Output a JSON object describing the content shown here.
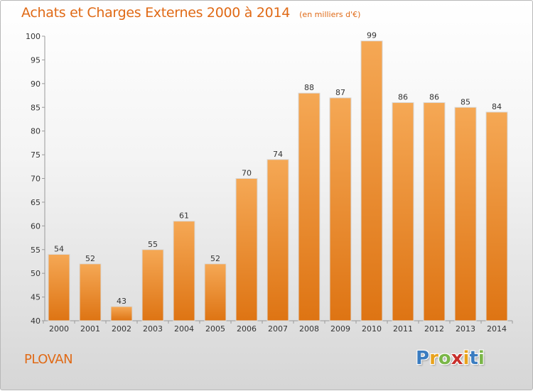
{
  "header": {
    "title": "Achats et Charges Externes 2000 à 2014",
    "unit": "(en milliers d'€)"
  },
  "footer": {
    "commune": "PLOVAN",
    "logo_letters": [
      "P",
      "r",
      "o",
      "x",
      "i",
      "t",
      "i"
    ],
    "logo_colors": [
      "#3a7cc0",
      "#e8a21c",
      "#7ab648",
      "#c8302c",
      "#e8a21c",
      "#3a7cc0",
      "#7ab648"
    ]
  },
  "colors": {
    "accent": "#e06a16",
    "bar_top": "#f5a855",
    "bar_bottom": "#de7413",
    "bar_edge": "#d9d9d9"
  },
  "chart_data": {
    "type": "bar",
    "title": "Achats et Charges Externes 2000 à 2014",
    "subtitle": "(en milliers d'€)",
    "xlabel": "",
    "ylabel": "",
    "categories": [
      "2000",
      "2001",
      "2002",
      "2003",
      "2004",
      "2005",
      "2006",
      "2007",
      "2008",
      "2009",
      "2010",
      "2011",
      "2012",
      "2013",
      "2014"
    ],
    "values": [
      54,
      52,
      43,
      55,
      61,
      52,
      70,
      74,
      88,
      87,
      99,
      86,
      86,
      85,
      84
    ],
    "ylim": [
      40,
      100
    ],
    "yticks": [
      40,
      45,
      50,
      55,
      60,
      65,
      70,
      75,
      80,
      85,
      90,
      95,
      100
    ],
    "grid": false,
    "legend": "none"
  }
}
